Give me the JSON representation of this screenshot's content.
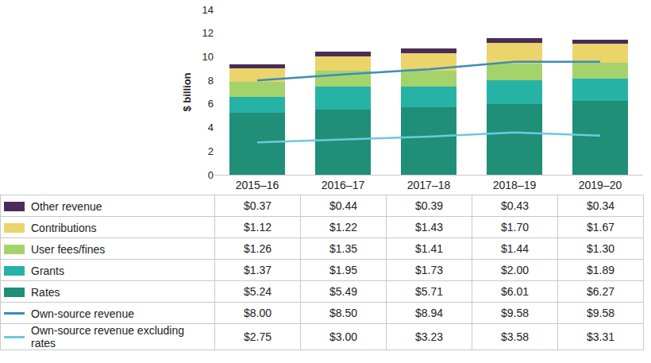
{
  "chart_data": {
    "type": "bar",
    "stacked": true,
    "grid": false,
    "ylabel": "$ billion",
    "categories": [
      "2015–16",
      "2016–17",
      "2017–18",
      "2018–19",
      "2019–20"
    ],
    "ylim": [
      0,
      14
    ],
    "yticks": [
      0,
      2,
      4,
      6,
      8,
      10,
      12,
      14
    ],
    "series": [
      {
        "name": "Other revenue",
        "type": "bar",
        "color": "#4b2c58",
        "values": [
          0.37,
          0.44,
          0.39,
          0.43,
          0.34
        ],
        "value_labels": [
          "$0.37",
          "$0.44",
          "$0.39",
          "$0.43",
          "$0.34"
        ]
      },
      {
        "name": "Contributions",
        "type": "bar",
        "color": "#ebd46a",
        "values": [
          1.12,
          1.22,
          1.43,
          1.7,
          1.67
        ],
        "value_labels": [
          "$1.12",
          "$1.22",
          "$1.43",
          "$1.70",
          "$1.67"
        ]
      },
      {
        "name": "User fees/fines",
        "type": "bar",
        "color": "#a5d36b",
        "values": [
          1.26,
          1.35,
          1.41,
          1.44,
          1.3
        ],
        "value_labels": [
          "$1.26",
          "$1.35",
          "$1.41",
          "$1.44",
          "$1.30"
        ]
      },
      {
        "name": "Grants",
        "type": "bar",
        "color": "#27b2a6",
        "values": [
          1.37,
          1.95,
          1.73,
          2.0,
          1.89
        ],
        "value_labels": [
          "$1.37",
          "$1.95",
          "$1.73",
          "$2.00",
          "$1.89"
        ]
      },
      {
        "name": "Rates",
        "type": "bar",
        "color": "#1f8f78",
        "values": [
          5.24,
          5.49,
          5.71,
          6.01,
          6.27
        ],
        "value_labels": [
          "$5.24",
          "$5.49",
          "$5.71",
          "$6.01",
          "$6.27"
        ]
      },
      {
        "name": "Own-source revenue",
        "type": "line",
        "color": "#3a8dba",
        "values": [
          8.0,
          8.5,
          8.94,
          9.58,
          9.58
        ],
        "value_labels": [
          "$8.00",
          "$8.50",
          "$8.94",
          "$9.58",
          "$9.58"
        ]
      },
      {
        "name": "Own-source revenue excluding rates",
        "type": "line",
        "color": "#6dcadb",
        "values": [
          2.75,
          3.0,
          3.23,
          3.58,
          3.31
        ],
        "value_labels": [
          "$2.75",
          "$3.00",
          "$3.23",
          "$3.58",
          "$3.31"
        ]
      }
    ]
  }
}
